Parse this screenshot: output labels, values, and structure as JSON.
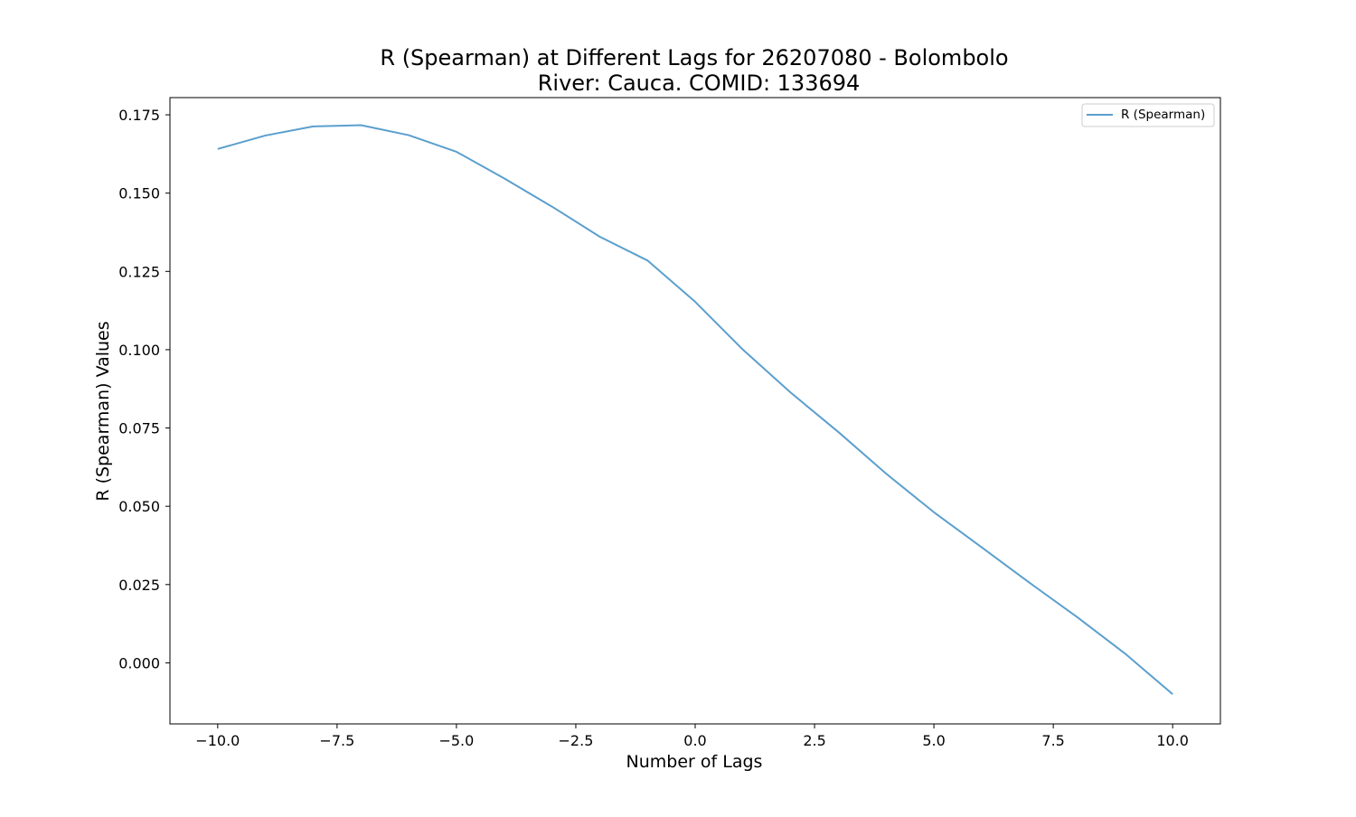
{
  "chart_data": {
    "type": "line",
    "title": [
      "R (Spearman) at Different Lags for 26207080 - Bolombolo",
      "River: Cauca. COMID: 133694"
    ],
    "xlabel": "Number of Lags",
    "ylabel": "R (Spearman) Values",
    "xlim": [
      -11.0,
      11.0
    ],
    "ylim": [
      -0.0195,
      0.1805
    ],
    "x_ticks": [
      -10.0,
      -7.5,
      -5.0,
      -2.5,
      0.0,
      2.5,
      5.0,
      7.5,
      10.0
    ],
    "x_tick_labels": [
      "−10.0",
      "−7.5",
      "−5.0",
      "−2.5",
      "0.0",
      "2.5",
      "5.0",
      "7.5",
      "10.0"
    ],
    "y_ticks": [
      0.0,
      0.025,
      0.05,
      0.075,
      0.1,
      0.125,
      0.15,
      0.175
    ],
    "y_tick_labels": [
      "0.000",
      "0.025",
      "0.050",
      "0.075",
      "0.100",
      "0.125",
      "0.150",
      "0.175"
    ],
    "grid": false,
    "legend_position": "top-right",
    "series": [
      {
        "name": "R (Spearman)",
        "color": "#5b9fce",
        "x": [
          -10,
          -9,
          -8,
          -7,
          -6,
          -5,
          -4,
          -3,
          -2,
          -1,
          0,
          1,
          2,
          3,
          4,
          5,
          6,
          7,
          8,
          9,
          10
        ],
        "y": [
          0.1641,
          0.1684,
          0.1713,
          0.1717,
          0.1685,
          0.1632,
          0.1547,
          0.1457,
          0.1361,
          0.1285,
          0.1153,
          0.1,
          0.0863,
          0.0737,
          0.0604,
          0.0481,
          0.0369,
          0.0256,
          0.0146,
          0.003,
          -0.01
        ]
      }
    ]
  }
}
